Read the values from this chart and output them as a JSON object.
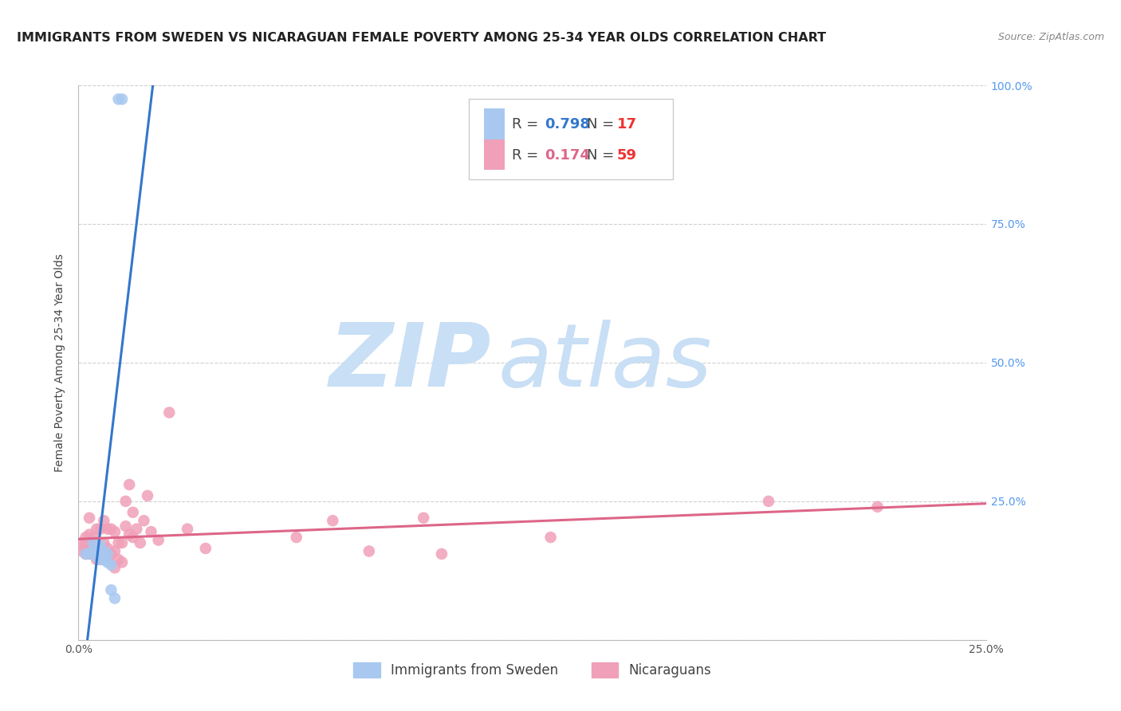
{
  "title": "IMMIGRANTS FROM SWEDEN VS NICARAGUAN FEMALE POVERTY AMONG 25-34 YEAR OLDS CORRELATION CHART",
  "source": "Source: ZipAtlas.com",
  "ylabel": "Female Poverty Among 25-34 Year Olds",
  "x_min": 0.0,
  "x_max": 0.25,
  "y_min": 0.0,
  "y_max": 1.0,
  "x_ticks": [
    0.0,
    0.05,
    0.1,
    0.15,
    0.2,
    0.25
  ],
  "x_tick_labels": [
    "0.0%",
    "",
    "",
    "",
    "",
    "25.0%"
  ],
  "y_ticks_right": [
    0.0,
    0.25,
    0.5,
    0.75,
    1.0
  ],
  "y_tick_labels_right": [
    "",
    "25.0%",
    "50.0%",
    "75.0%",
    "100.0%"
  ],
  "background_color": "#ffffff",
  "grid_color": "#d0d0d0",
  "watermark_zip": "ZIP",
  "watermark_atlas": "atlas",
  "watermark_color_zip": "#c8dff5",
  "watermark_color_atlas": "#c8dff5",
  "sweden_color": "#a8c8f0",
  "nicaragua_color": "#f0a0b8",
  "sweden_line_color": "#3377cc",
  "nicaragua_line_color": "#dd6688",
  "legend_r_sweden": "0.798",
  "legend_n_sweden": "17",
  "legend_r_nicaragua": "0.174",
  "legend_n_nicaragua": "59",
  "legend_r_color_sweden": "#3377cc",
  "legend_n_color_sweden": "#ee3333",
  "legend_r_color_nicaragua": "#dd6688",
  "legend_n_color_nicaragua": "#ee3333",
  "sweden_x": [
    0.002,
    0.003,
    0.004,
    0.004,
    0.005,
    0.005,
    0.006,
    0.006,
    0.007,
    0.007,
    0.008,
    0.008,
    0.009,
    0.009,
    0.01,
    0.011,
    0.012
  ],
  "sweden_y": [
    0.155,
    0.155,
    0.16,
    0.175,
    0.15,
    0.165,
    0.145,
    0.17,
    0.145,
    0.16,
    0.14,
    0.155,
    0.135,
    0.09,
    0.075,
    0.975,
    0.975
  ],
  "nicaragua_x": [
    0.001,
    0.001,
    0.002,
    0.002,
    0.002,
    0.002,
    0.003,
    0.003,
    0.003,
    0.003,
    0.003,
    0.004,
    0.004,
    0.004,
    0.005,
    0.005,
    0.005,
    0.005,
    0.006,
    0.006,
    0.006,
    0.007,
    0.007,
    0.007,
    0.008,
    0.008,
    0.008,
    0.009,
    0.009,
    0.01,
    0.01,
    0.01,
    0.011,
    0.011,
    0.012,
    0.012,
    0.013,
    0.013,
    0.014,
    0.014,
    0.015,
    0.015,
    0.016,
    0.017,
    0.018,
    0.019,
    0.02,
    0.022,
    0.025,
    0.03,
    0.035,
    0.06,
    0.07,
    0.08,
    0.095,
    0.1,
    0.13,
    0.19,
    0.22
  ],
  "nicaragua_y": [
    0.16,
    0.175,
    0.155,
    0.165,
    0.175,
    0.185,
    0.155,
    0.165,
    0.175,
    0.19,
    0.22,
    0.155,
    0.17,
    0.185,
    0.145,
    0.16,
    0.175,
    0.2,
    0.145,
    0.165,
    0.2,
    0.155,
    0.175,
    0.215,
    0.145,
    0.165,
    0.2,
    0.155,
    0.2,
    0.13,
    0.16,
    0.195,
    0.145,
    0.175,
    0.14,
    0.175,
    0.205,
    0.25,
    0.19,
    0.28,
    0.185,
    0.23,
    0.2,
    0.175,
    0.215,
    0.26,
    0.195,
    0.18,
    0.41,
    0.2,
    0.165,
    0.185,
    0.215,
    0.16,
    0.22,
    0.155,
    0.185,
    0.25,
    0.24
  ],
  "title_fontsize": 11.5,
  "axis_label_fontsize": 10,
  "tick_fontsize": 10
}
